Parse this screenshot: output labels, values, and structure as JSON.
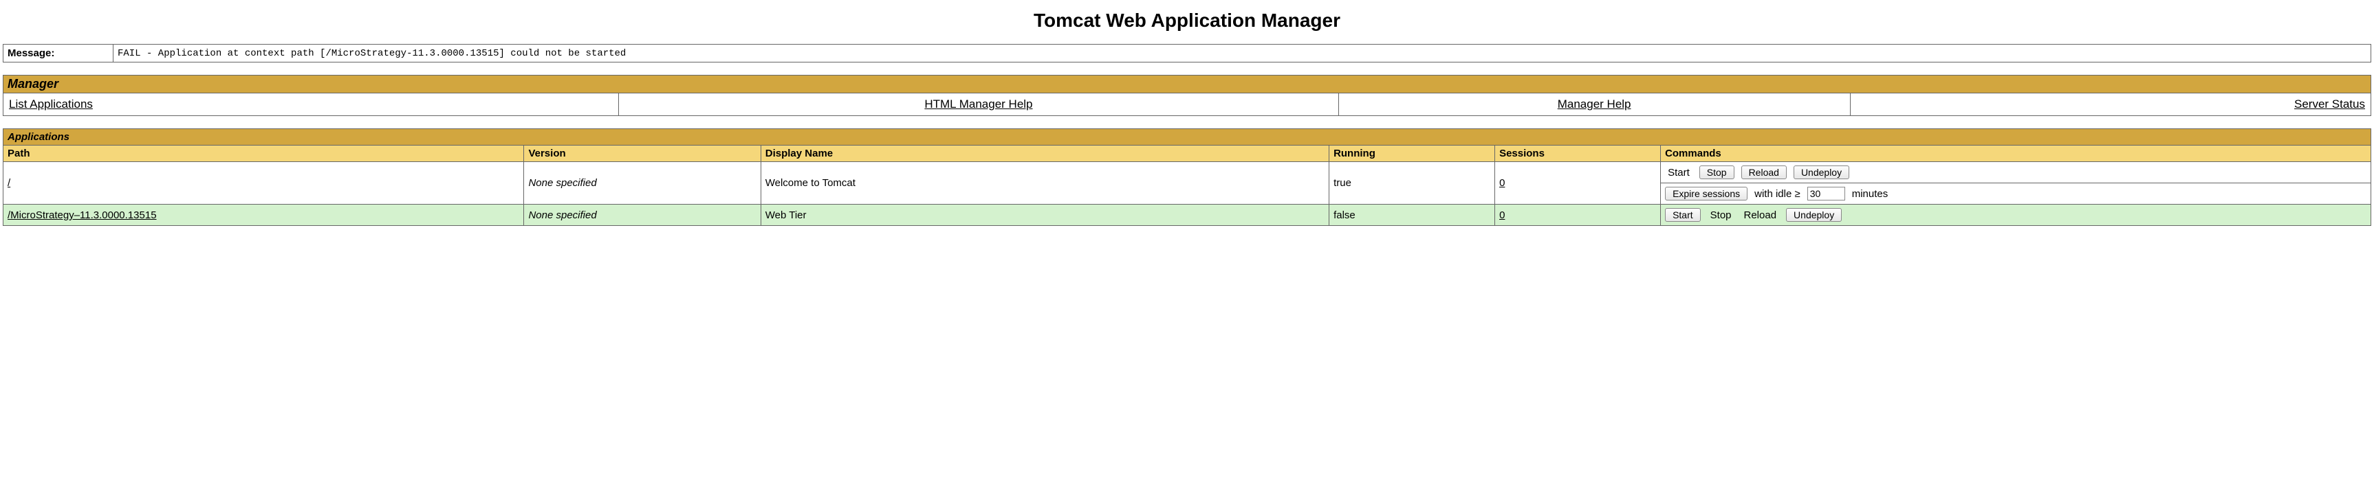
{
  "title": "Tomcat Web Application Manager",
  "message": {
    "label": "Message:",
    "text": "FAIL - Application at context path [/MicroStrategy-11.3.0000.13515] could not be started"
  },
  "manager": {
    "header": "Manager",
    "links": {
      "list": "List Applications",
      "htmlHelp": "HTML Manager Help",
      "help": "Manager Help",
      "status": "Server Status"
    }
  },
  "applications": {
    "header": "Applications",
    "columns": {
      "path": "Path",
      "version": "Version",
      "display": "Display Name",
      "running": "Running",
      "sessions": "Sessions",
      "commands": "Commands"
    },
    "row0": {
      "path": "/",
      "version": "None specified",
      "display": "Welcome to Tomcat",
      "running": "true",
      "sessions": "0",
      "cmd": {
        "start": "Start",
        "stop": "Stop",
        "reload": "Reload",
        "undeploy": "Undeploy",
        "expire": "Expire sessions",
        "withIdle": "with idle ≥",
        "idleValue": "30",
        "minutes": "minutes"
      }
    },
    "row1": {
      "path": "/MicroStrategy–11.3.0000.13515",
      "version": "None specified",
      "display": "Web Tier",
      "running": "false",
      "sessions": "0",
      "cmd": {
        "start": "Start",
        "stop": "Stop",
        "reload": "Reload",
        "undeploy": "Undeploy"
      }
    }
  },
  "colors": {
    "sectionHeader": "#d2a63f",
    "columnHeader": "#f5d77a",
    "altRow": "#d4f2ce",
    "border": "#666666"
  }
}
